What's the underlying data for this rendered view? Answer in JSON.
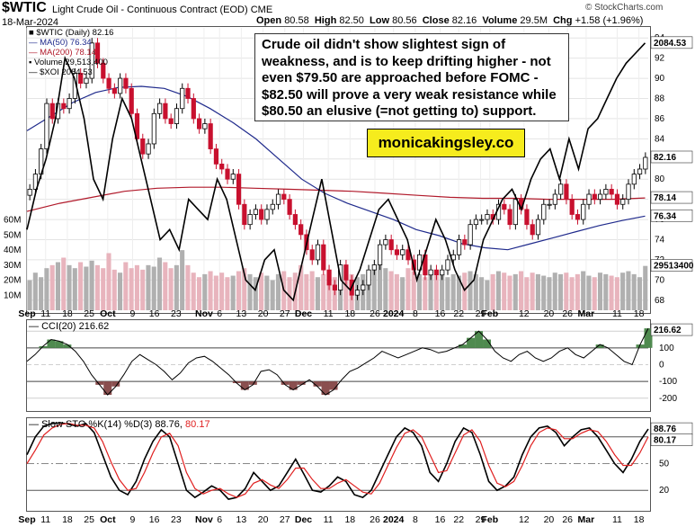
{
  "header": {
    "symbol": "$WTIC",
    "description": "Light Crude Oil - Continuous Contract (EOD)",
    "exchange": "CME",
    "date": "18-Mar-2024",
    "open_label": "Open",
    "open": "80.58",
    "high_label": "High",
    "high": "82.50",
    "low_label": "Low",
    "low": "80.56",
    "close_label": "Close",
    "close": "82.16",
    "volume_label": "Volume",
    "volume": "29.5M",
    "chg_label": "Chg",
    "chg": "+1.58 (+1.96%)",
    "watermark": "© StockCharts.com"
  },
  "annotation": {
    "text": "Crude oil didn't show slightest sign of weakness, and is to keep drifting higher - not even $79.50 are approached before FOMC - $82.50 will prove a very weak resistance while $80.50 an elusive (=not getting to) support.",
    "brand": "monicakingsley.co"
  },
  "colors": {
    "up": "#000000",
    "down": "#c8102e",
    "ma50": "#1f2a8c",
    "ma200": "#b11a2b",
    "xoi": "#000000",
    "vol_up": "#b0b0b0",
    "vol_down": "#e8b4bd",
    "cci_pos": "#4f8a4f",
    "cci_neg": "#8a4f4f",
    "sto_k": "#000000",
    "sto_d": "#e02020",
    "brand_bg": "#f6ec1d"
  },
  "chart_data": [
    {
      "type": "candlestick",
      "title": "$WTIC (Daily) 82.16",
      "legend": [
        {
          "label": "$WTIC (Daily) 82.16",
          "icon": "candle-icon"
        },
        {
          "label": "MA(50) 76.34",
          "color": "#1f2a8c"
        },
        {
          "label": "MA(200) 78.14",
          "color": "#b11a2b"
        },
        {
          "label": "Volume 29,513,400",
          "icon": "volume-icon"
        },
        {
          "label": "$XOI 2084.53",
          "color": "#000000"
        }
      ],
      "ylim": [
        67,
        95
      ],
      "yticks": [
        68,
        70,
        72,
        74,
        76,
        78,
        80,
        82,
        84,
        86,
        88,
        90,
        92,
        94
      ],
      "volume_ticks": [
        "10M",
        "20M",
        "30M",
        "40M",
        "50M",
        "60M"
      ],
      "volume_ylim": [
        0,
        64
      ],
      "x_labels": [
        "Sep",
        "11",
        "18",
        "25",
        "Oct",
        "9",
        "16",
        "23",
        "Nov",
        "6",
        "13",
        "20",
        "27",
        "Dec",
        "11",
        "18",
        "26",
        "2024",
        "8",
        "16",
        "22",
        "29",
        "Feb",
        "12",
        "20",
        "26",
        "Mar",
        "11",
        "18"
      ],
      "x_label_days": [
        0,
        6,
        13,
        20,
        26,
        34,
        41,
        48,
        57,
        62,
        69,
        76,
        83,
        89,
        97,
        104,
        112,
        118,
        125,
        133,
        139,
        146,
        149,
        160,
        168,
        174,
        180,
        190,
        197
      ],
      "x_days": 200,
      "close": [
        79.0,
        80.5,
        83.0,
        87.5,
        86.0,
        87.5,
        87.0,
        88.0,
        90.5,
        89.5,
        90.0,
        93.5,
        91.5,
        90.0,
        89.0,
        88.5,
        90.0,
        89.0,
        86.5,
        84.0,
        82.5,
        83.5,
        86.5,
        87.5,
        86.0,
        85.5,
        87.0,
        89.0,
        88.0,
        86.0,
        85.0,
        85.5,
        83.0,
        81.5,
        81.0,
        80.0,
        80.5,
        77.5,
        75.5,
        76.5,
        77.0,
        76.0,
        77.0,
        77.5,
        78.5,
        78.0,
        76.5,
        75.5,
        74.5,
        73.0,
        72.0,
        73.5,
        71.0,
        69.5,
        69.0,
        71.5,
        70.0,
        68.5,
        69.0,
        69.5,
        71.0,
        71.5,
        73.5,
        74.0,
        73.0,
        72.5,
        73.0,
        72.0,
        71.0,
        72.5,
        70.5,
        71.0,
        70.5,
        71.0,
        72.0,
        72.5,
        74.0,
        73.5,
        75.5,
        76.0,
        76.0,
        76.5,
        76.0,
        77.5,
        77.0,
        75.5,
        78.0,
        77.0,
        75.5,
        74.5,
        76.0,
        77.5,
        77.5,
        78.5,
        79.5,
        78.0,
        76.5,
        76.0,
        77.5,
        78.5,
        78.0,
        78.5,
        79.0,
        78.5,
        77.5,
        78.0,
        79.5,
        80.5,
        81.0,
        82.16
      ],
      "ma50": [
        84.8,
        86.2,
        87.6,
        88.6,
        89.1,
        89.2,
        89.0,
        88.2,
        87.0,
        85.6,
        84.0,
        82.0,
        80.0,
        78.6,
        77.6,
        76.8,
        76.0,
        75.0,
        74.4,
        73.6,
        73.2,
        73.0,
        73.6,
        74.2,
        74.8,
        75.4,
        75.9,
        76.34
      ],
      "ma200": [
        76.8,
        77.6,
        78.2,
        78.8,
        79.1,
        79.2,
        79.2,
        79.1,
        79.0,
        78.9,
        78.8,
        78.6,
        78.4,
        78.2,
        78.1,
        78.1,
        78.0,
        78.0,
        78.0,
        78.14
      ],
      "volume_m": [
        20,
        25,
        22,
        28,
        30,
        32,
        35,
        30,
        28,
        32,
        29,
        33,
        30,
        28,
        38,
        27,
        25,
        32,
        28,
        30,
        27,
        30,
        29,
        35,
        32,
        28,
        30,
        40,
        30,
        25,
        22,
        24,
        26,
        23,
        25,
        22,
        23,
        26,
        28,
        24,
        22,
        25,
        23,
        20,
        24,
        26,
        22,
        25,
        30,
        24,
        26,
        22,
        24,
        25,
        22,
        23,
        26,
        24,
        22,
        24,
        23,
        27,
        30,
        28,
        26,
        24,
        22,
        28,
        26,
        24,
        22,
        25,
        23,
        26,
        22,
        24,
        23,
        25,
        26,
        24,
        22,
        20,
        24,
        26,
        25,
        23,
        24,
        26,
        22,
        25,
        24,
        23,
        22,
        25,
        24,
        25,
        22,
        24,
        26,
        23,
        22,
        25,
        24,
        23,
        22,
        25,
        26,
        24,
        22,
        29.5
      ],
      "xoi_scaled": [
        75,
        79,
        82,
        86,
        92,
        90,
        86,
        80,
        78,
        84,
        88,
        86,
        82,
        78,
        74,
        75,
        73,
        78,
        77,
        76,
        80,
        78,
        74,
        70,
        69,
        72,
        73,
        69,
        68,
        72,
        76,
        80,
        75,
        70,
        69,
        71,
        74,
        77,
        78,
        76,
        74,
        70,
        73,
        76,
        74,
        71,
        69,
        70,
        74,
        76,
        78,
        79,
        77,
        80,
        82,
        83,
        80,
        84,
        81,
        85,
        86,
        88,
        90,
        91.5,
        92.5,
        93.5
      ]
    },
    {
      "type": "line",
      "title": "CCI(20) 216.62",
      "ylim": [
        -260,
        260
      ],
      "yticks": [
        200,
        100,
        0,
        -100,
        -200
      ],
      "values": [
        20,
        60,
        110,
        150,
        140,
        120,
        80,
        20,
        -60,
        -120,
        -180,
        -130,
        -60,
        20,
        60,
        30,
        0,
        -40,
        -90,
        -50,
        10,
        40,
        50,
        20,
        -20,
        -60,
        -110,
        -150,
        -120,
        -40,
        -30,
        -60,
        -120,
        -150,
        -120,
        -90,
        -130,
        -180,
        -150,
        -90,
        -40,
        -20,
        10,
        40,
        80,
        60,
        40,
        60,
        80,
        100,
        90,
        70,
        80,
        100,
        120,
        160,
        200,
        150,
        80,
        40,
        20,
        60,
        80,
        40,
        20,
        40,
        80,
        100,
        60,
        40,
        80,
        120,
        100,
        60,
        20,
        0,
        120,
        216.62
      ]
    },
    {
      "type": "line",
      "title": "Slow STO %K(14) %D(3) 88.76, 80.17",
      "ylim": [
        0,
        100
      ],
      "yticks": [
        20,
        50,
        80
      ],
      "series": [
        {
          "name": "%K(14)",
          "values": [
            60,
            80,
            92,
            95,
            96,
            94,
            92,
            95,
            85,
            60,
            35,
            20,
            15,
            30,
            55,
            75,
            88,
            80,
            50,
            20,
            12,
            18,
            25,
            20,
            10,
            12,
            22,
            40,
            30,
            20,
            25,
            40,
            55,
            38,
            20,
            18,
            25,
            35,
            30,
            15,
            12,
            20,
            40,
            60,
            80,
            90,
            85,
            70,
            40,
            30,
            50,
            75,
            90,
            85,
            60,
            30,
            20,
            25,
            35,
            60,
            80,
            90,
            92,
            85,
            70,
            80,
            88,
            90,
            80,
            65,
            50,
            40,
            55,
            75,
            88.76
          ]
        },
        {
          "name": "%D(3)",
          "values": [
            50,
            65,
            82,
            90,
            94,
            95,
            93,
            93,
            90,
            75,
            52,
            32,
            20,
            22,
            40,
            62,
            80,
            84,
            70,
            40,
            22,
            16,
            20,
            22,
            16,
            12,
            16,
            28,
            32,
            26,
            22,
            32,
            45,
            45,
            32,
            22,
            22,
            28,
            32,
            25,
            18,
            16,
            28,
            48,
            68,
            84,
            88,
            80,
            60,
            40,
            42,
            62,
            82,
            88,
            75,
            48,
            28,
            24,
            30,
            48,
            70,
            85,
            90,
            88,
            78,
            78,
            84,
            88,
            86,
            75,
            60,
            48,
            48,
            62,
            80.17
          ]
        }
      ]
    }
  ]
}
